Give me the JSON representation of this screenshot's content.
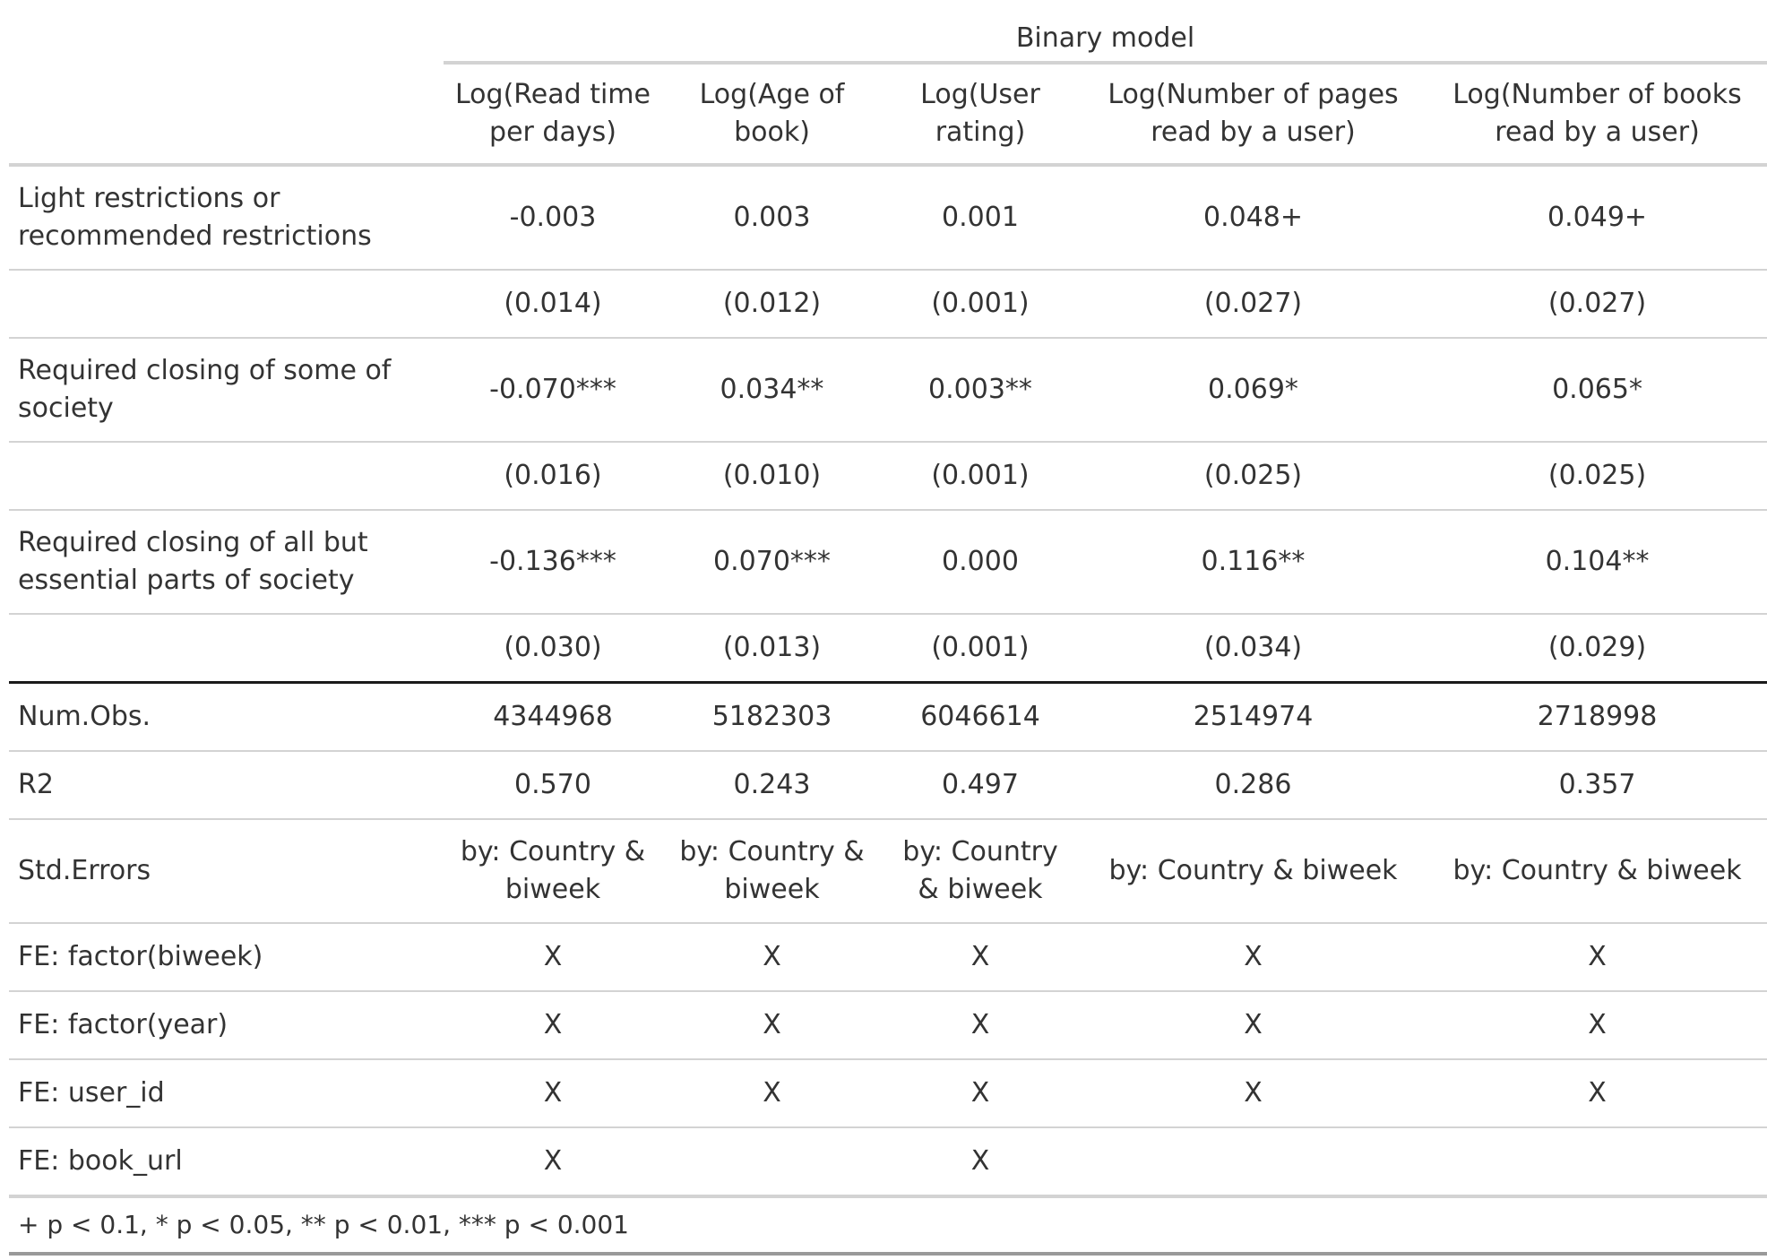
{
  "caption": "Binary model",
  "columns": [
    "Log(Read time per days)",
    "Log(Age of book)",
    "Log(User rating)",
    "Log(Number of pages read by a user)",
    "Log(Number of books read by a user)"
  ],
  "coefficients": [
    {
      "label": "Light restrictions or recommended restrictions",
      "estimates": [
        "-0.003",
        "0.003",
        "0.001",
        "0.048+",
        "0.049+"
      ],
      "std_errors": [
        "(0.014)",
        "(0.012)",
        "(0.001)",
        "(0.027)",
        "(0.027)"
      ]
    },
    {
      "label": "Required closing of some of society",
      "estimates": [
        "-0.070***",
        "0.034**",
        "0.003**",
        "0.069*",
        "0.065*"
      ],
      "std_errors": [
        "(0.016)",
        "(0.010)",
        "(0.001)",
        "(0.025)",
        "(0.025)"
      ]
    },
    {
      "label": "Required closing of all but essential parts of society",
      "estimates": [
        "-0.136***",
        "0.070***",
        "0.000",
        "0.116**",
        "0.104**"
      ],
      "std_errors": [
        "(0.030)",
        "(0.013)",
        "(0.001)",
        "(0.034)",
        "(0.029)"
      ]
    }
  ],
  "gof": [
    {
      "label": "Num.Obs.",
      "values": [
        "4344968",
        "5182303",
        "6046614",
        "2514974",
        "2718998"
      ]
    },
    {
      "label": "R2",
      "values": [
        "0.570",
        "0.243",
        "0.497",
        "0.286",
        "0.357"
      ]
    },
    {
      "label": "Std.Errors",
      "values": [
        "by: Country & biweek",
        "by: Country & biweek",
        "by: Country & biweek",
        "by: Country & biweek",
        "by: Country & biweek"
      ]
    },
    {
      "label": "FE: factor(biweek)",
      "values": [
        "X",
        "X",
        "X",
        "X",
        "X"
      ]
    },
    {
      "label": "FE: factor(year)",
      "values": [
        "X",
        "X",
        "X",
        "X",
        "X"
      ]
    },
    {
      "label": "FE: user_id",
      "values": [
        "X",
        "X",
        "X",
        "X",
        "X"
      ]
    },
    {
      "label": "FE: book_url",
      "values": [
        "X",
        "",
        "X",
        "",
        ""
      ]
    }
  ],
  "note": "+ p < 0.1, * p < 0.05, ** p < 0.01, *** p < 0.001"
}
